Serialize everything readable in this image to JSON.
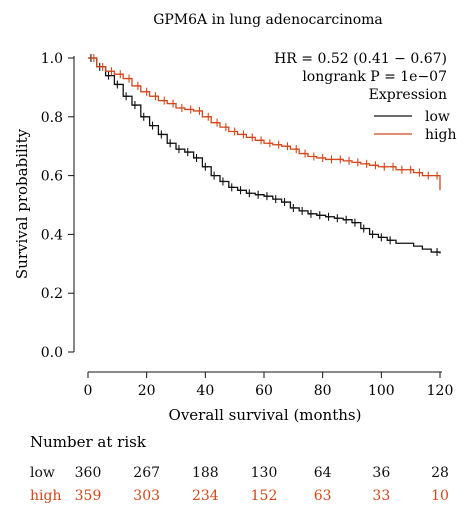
{
  "chart_data": {
    "type": "line",
    "title": "GPM6A in lung adenocarcinoma",
    "xlabel": "Overall survival (months)",
    "ylabel": "Survival probability",
    "xlim": [
      0,
      120
    ],
    "ylim": [
      0,
      1
    ],
    "xticks": [
      0,
      20,
      40,
      60,
      80,
      100,
      120
    ],
    "yticks": [
      0.0,
      0.2,
      0.4,
      0.6,
      0.8,
      1.0
    ],
    "x_tick_labels": [
      "0",
      "20",
      "40",
      "60",
      "80",
      "100",
      "120"
    ],
    "y_tick_labels": [
      "0.0",
      "0.2",
      "0.4",
      "0.6",
      "0.8",
      "1.0"
    ],
    "grid": false,
    "legend_position": "top-right",
    "annotations": {
      "hr": "HR = 0.52 (0.41 − 0.67)",
      "pvalue": "longrank P = 1e−07"
    },
    "legend_title": "Expression",
    "series": [
      {
        "name": "low",
        "color": "#111111",
        "x": [
          0,
          3,
          6,
          9,
          12,
          15,
          18,
          21,
          24,
          27,
          30,
          33,
          36,
          39,
          42,
          45,
          48,
          51,
          54,
          57,
          60,
          63,
          66,
          69,
          72,
          75,
          78,
          81,
          84,
          87,
          90,
          93,
          96,
          99,
          102,
          105,
          108,
          111,
          114,
          117,
          120
        ],
        "y": [
          1.0,
          0.97,
          0.94,
          0.91,
          0.87,
          0.84,
          0.8,
          0.77,
          0.74,
          0.71,
          0.69,
          0.68,
          0.66,
          0.63,
          0.6,
          0.58,
          0.56,
          0.55,
          0.54,
          0.535,
          0.53,
          0.52,
          0.51,
          0.49,
          0.48,
          0.47,
          0.465,
          0.46,
          0.455,
          0.45,
          0.44,
          0.42,
          0.4,
          0.39,
          0.38,
          0.37,
          0.37,
          0.36,
          0.35,
          0.34,
          0.335
        ],
        "censor_x": [
          1,
          4,
          7,
          10,
          13,
          16,
          19,
          22,
          25,
          28,
          31,
          34,
          37,
          40,
          43,
          46,
          49,
          52,
          55,
          58,
          61,
          64,
          67,
          70,
          73,
          76,
          79,
          82,
          85,
          88,
          91,
          94,
          97,
          100,
          103,
          119
        ]
      },
      {
        "name": "high",
        "color": "#d4471a",
        "x": [
          0,
          3,
          6,
          9,
          12,
          15,
          18,
          21,
          24,
          27,
          30,
          33,
          36,
          39,
          42,
          45,
          48,
          51,
          54,
          57,
          60,
          63,
          66,
          69,
          72,
          75,
          78,
          81,
          84,
          87,
          90,
          93,
          96,
          99,
          102,
          105,
          108,
          111,
          114,
          117,
          120
        ],
        "y": [
          1.0,
          0.97,
          0.955,
          0.945,
          0.93,
          0.905,
          0.885,
          0.87,
          0.855,
          0.845,
          0.83,
          0.825,
          0.82,
          0.8,
          0.78,
          0.765,
          0.75,
          0.74,
          0.73,
          0.72,
          0.71,
          0.705,
          0.7,
          0.69,
          0.675,
          0.665,
          0.66,
          0.655,
          0.655,
          0.65,
          0.645,
          0.64,
          0.635,
          0.63,
          0.63,
          0.62,
          0.62,
          0.61,
          0.6,
          0.6,
          0.55
        ],
        "censor_x": [
          2,
          5,
          8,
          11,
          14,
          17,
          20,
          23,
          26,
          29,
          32,
          35,
          38,
          41,
          44,
          47,
          50,
          53,
          56,
          59,
          62,
          65,
          68,
          71,
          74,
          77,
          80,
          83,
          86,
          89,
          92,
          95,
          98,
          101,
          104,
          107,
          110,
          113,
          116,
          119
        ]
      }
    ],
    "risk_table": {
      "title": "Number at risk",
      "time_points": [
        0,
        20,
        40,
        60,
        80,
        100,
        120
      ],
      "rows": [
        {
          "label": "low",
          "color": "#111111",
          "values": [
            "360",
            "267",
            "188",
            "130",
            "64",
            "36",
            "28"
          ]
        },
        {
          "label": "high",
          "color": "#d4471a",
          "values": [
            "359",
            "303",
            "234",
            "152",
            "63",
            "33",
            "10"
          ]
        }
      ]
    }
  }
}
